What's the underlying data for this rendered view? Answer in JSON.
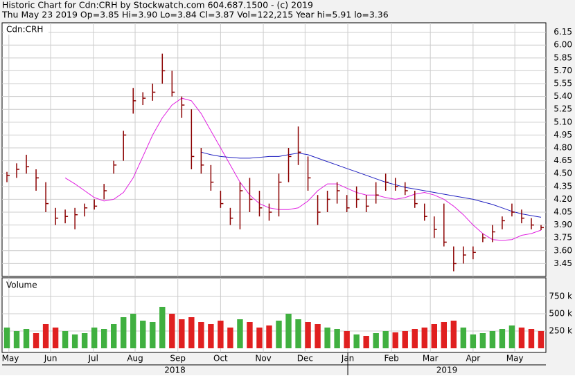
{
  "chart_data": {
    "type": "ohlc",
    "title": "Historic Chart for Cdn:CRH by Stockwatch.com 604.687.1500 - (c) 2019",
    "subtitle": "Thu May 23 2019  Op=3.85  Hi=3.90  Lo=3.84  Cl=3.87  Vol=122,215  Year hi=5.91  lo=3.36",
    "symbol": "Cdn:CRH",
    "volume_title": "Volume",
    "xlim": [
      -0.5,
      55.5
    ],
    "xticks": [
      {
        "value": 0.2,
        "label": "May"
      },
      {
        "value": 4.5,
        "label": "Jun"
      },
      {
        "value": 8.9,
        "label": "Jul"
      },
      {
        "value": 13.2,
        "label": "Aug"
      },
      {
        "value": 17.6,
        "label": "Sep"
      },
      {
        "value": 22,
        "label": "Oct"
      },
      {
        "value": 26.4,
        "label": "Nov"
      },
      {
        "value": 30.7,
        "label": "Dec"
      },
      {
        "value": 35.1,
        "label": "Jan"
      },
      {
        "value": 39.6,
        "label": "Feb"
      },
      {
        "value": 43.6,
        "label": "Mar"
      },
      {
        "value": 48,
        "label": "Apr"
      },
      {
        "value": 52.3,
        "label": "May"
      }
    ],
    "years": [
      {
        "value": -0.5,
        "label": "2018"
      },
      {
        "value": 35.1,
        "label": "2019"
      }
    ],
    "ylim": [
      3.3,
      6.26
    ],
    "yticks": [
      6.15,
      {
        "value": 6.0,
        "label": "6.00"
      },
      5.85,
      {
        "value": 5.7,
        "label": "5.70"
      },
      5.55,
      {
        "value": 5.4,
        "label": "5.40"
      },
      5.25,
      {
        "value": 5.1,
        "label": "5.10"
      },
      4.95,
      {
        "value": 4.8,
        "label": "4.80"
      },
      4.65,
      {
        "value": 4.5,
        "label": "4.50"
      },
      4.35,
      {
        "value": 4.2,
        "label": "4.20"
      },
      4.05,
      {
        "value": 3.9,
        "label": "3.90"
      },
      3.75,
      {
        "value": 3.6,
        "label": "3.60"
      },
      3.45
    ],
    "grid": true,
    "bar_color": "#8b0000",
    "high": [
      4.52,
      4.62,
      4.72,
      4.55,
      4.4,
      4.1,
      4.08,
      4.1,
      4.15,
      4.2,
      4.38,
      4.65,
      5.0,
      5.5,
      5.45,
      5.55,
      5.9,
      5.7,
      5.4,
      5.25,
      4.8,
      4.6,
      4.3,
      4.1,
      4.4,
      4.45,
      4.3,
      4.15,
      4.5,
      4.8,
      5.05,
      4.7,
      4.25,
      4.3,
      4.4,
      4.25,
      4.35,
      4.25,
      4.4,
      4.5,
      4.45,
      4.4,
      4.3,
      4.15,
      4.0,
      4.15,
      3.65,
      3.65,
      3.65,
      3.8,
      3.9,
      4.0,
      4.15,
      4.08,
      3.98,
      3.9
    ],
    "low": [
      4.4,
      4.45,
      4.5,
      4.3,
      4.05,
      3.9,
      3.92,
      3.85,
      4.0,
      4.08,
      4.2,
      4.5,
      4.65,
      5.2,
      5.3,
      5.35,
      5.55,
      5.4,
      5.15,
      4.55,
      4.5,
      4.3,
      4.1,
      3.9,
      3.85,
      4.05,
      4.0,
      3.95,
      4.0,
      4.4,
      4.6,
      4.3,
      3.9,
      4.05,
      4.15,
      4.05,
      4.1,
      4.05,
      4.15,
      4.3,
      4.3,
      4.25,
      4.1,
      3.95,
      3.75,
      3.65,
      3.36,
      3.45,
      3.5,
      3.7,
      3.7,
      3.85,
      4.0,
      3.92,
      3.85,
      3.84
    ],
    "close": [
      4.48,
      4.55,
      4.58,
      4.45,
      4.15,
      3.98,
      4.0,
      4.02,
      4.1,
      4.12,
      4.3,
      4.6,
      4.95,
      5.35,
      5.38,
      5.45,
      5.7,
      5.45,
      5.3,
      4.7,
      4.6,
      4.4,
      4.15,
      3.98,
      4.3,
      4.2,
      4.1,
      4.05,
      4.4,
      4.7,
      4.75,
      4.45,
      4.05,
      4.2,
      4.3,
      4.1,
      4.2,
      4.12,
      4.25,
      4.4,
      4.35,
      4.3,
      4.15,
      4.0,
      3.85,
      3.7,
      3.45,
      3.55,
      3.58,
      3.75,
      3.82,
      3.95,
      4.05,
      3.98,
      3.9,
      3.87
    ],
    "series": [
      {
        "color": "#e020e0",
        "values": [
          null,
          null,
          null,
          null,
          null,
          null,
          4.45,
          4.38,
          4.3,
          4.22,
          4.18,
          4.2,
          4.28,
          4.45,
          4.7,
          4.95,
          5.15,
          5.3,
          5.38,
          5.35,
          5.2,
          5.0,
          4.8,
          4.6,
          4.4,
          4.25,
          4.15,
          4.1,
          4.08,
          4.08,
          4.1,
          4.18,
          4.3,
          4.38,
          4.38,
          4.33,
          4.28,
          4.25,
          4.25,
          4.22,
          4.2,
          4.22,
          4.26,
          4.28,
          4.25,
          4.2,
          4.12,
          4.02,
          3.9,
          3.8,
          3.73,
          3.72,
          3.73,
          3.78,
          3.8,
          3.84
        ]
      },
      {
        "color": "#2020c0",
        "values": [
          null,
          null,
          null,
          null,
          null,
          null,
          null,
          null,
          null,
          null,
          null,
          null,
          null,
          null,
          null,
          null,
          null,
          null,
          null,
          null,
          4.75,
          4.72,
          4.7,
          4.69,
          4.68,
          4.68,
          4.69,
          4.7,
          4.7,
          4.72,
          4.74,
          4.72,
          4.68,
          4.64,
          4.6,
          4.56,
          4.52,
          4.48,
          4.44,
          4.4,
          4.37,
          4.34,
          4.32,
          4.3,
          4.28,
          4.26,
          4.24,
          4.22,
          4.2,
          4.17,
          4.14,
          4.1,
          4.06,
          4.03,
          4.01,
          3.99
        ]
      }
    ],
    "volume": [
      300,
      250,
      280,
      220,
      350,
      300,
      250,
      200,
      220,
      300,
      280,
      350,
      450,
      500,
      400,
      380,
      600,
      500,
      420,
      450,
      380,
      350,
      400,
      300,
      420,
      380,
      300,
      330,
      400,
      500,
      420,
      380,
      350,
      300,
      280,
      250,
      200,
      180,
      220,
      250,
      230,
      250,
      280,
      300,
      350,
      380,
      400,
      300,
      200,
      220,
      250,
      280,
      330,
      300,
      280,
      250
    ],
    "up_color": "#40b040",
    "down_color": "#e02020",
    "vlim": [
      0,
      1000
    ],
    "vticks": [
      {
        "value": 250,
        "label": "250 k"
      },
      {
        "value": 500,
        "label": "500 k"
      },
      {
        "value": 750,
        "label": "750 k"
      }
    ]
  }
}
